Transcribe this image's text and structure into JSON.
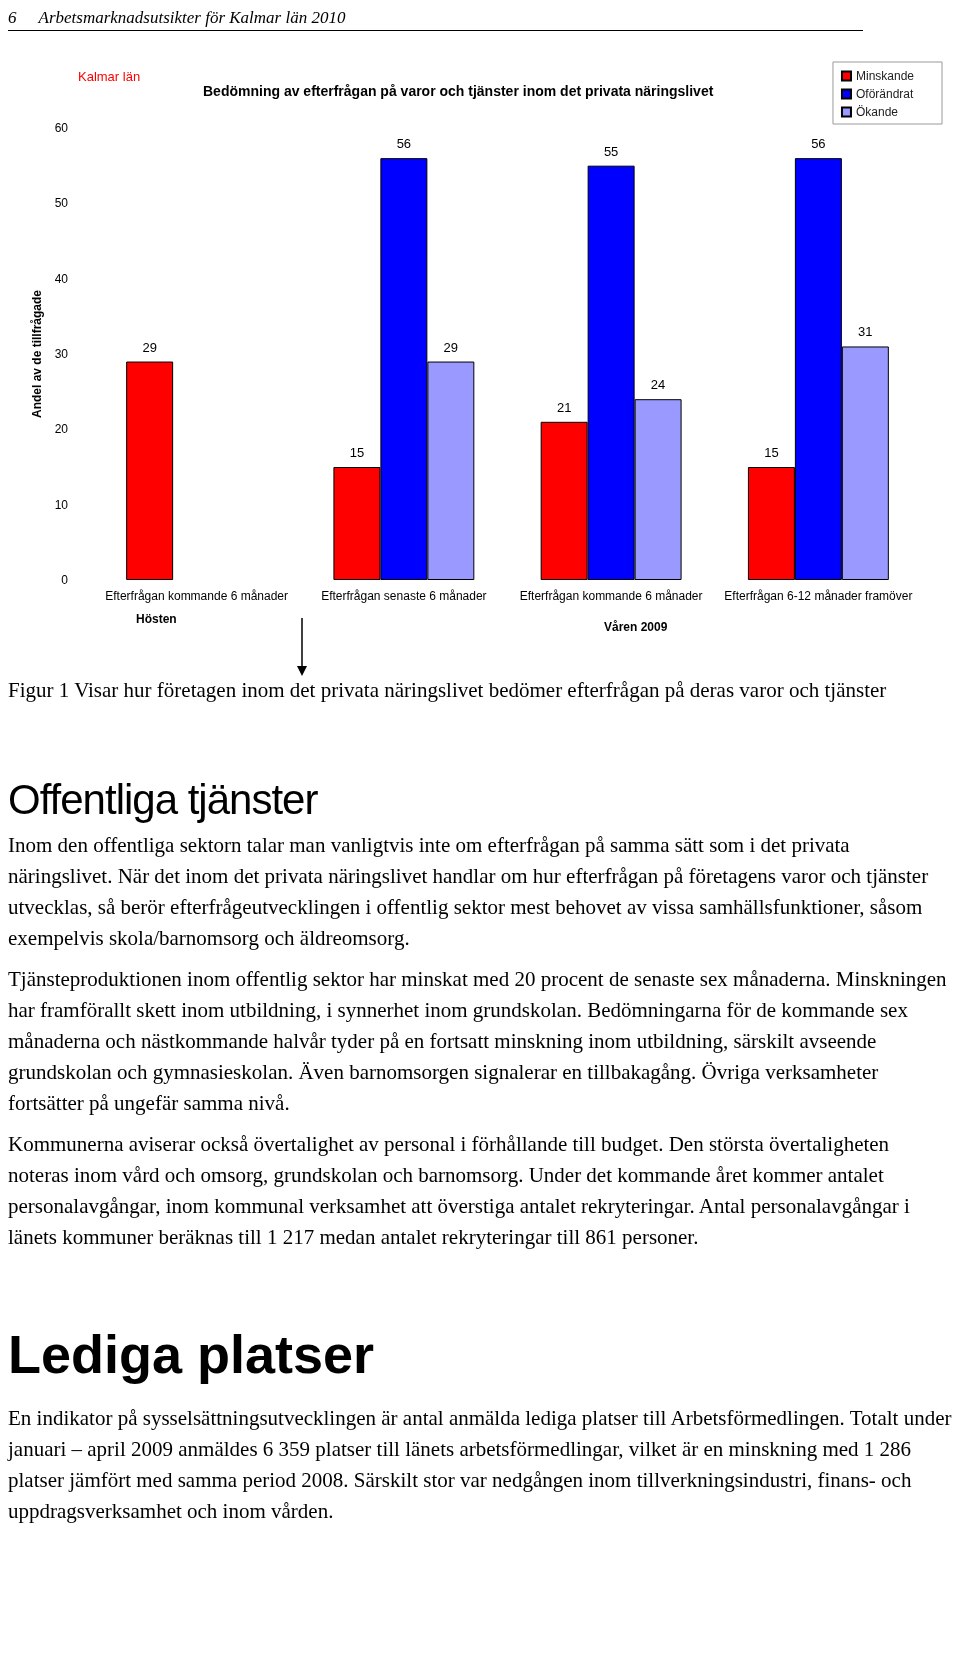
{
  "chart_data": {
    "type": "bar",
    "title": "Bedömning av efterfrågan på varor och tjänster inom det privata näringslivet",
    "ylabel": "Andel av de tillfrågade",
    "categories": [
      "Efterfrågan kommande 6 månader",
      "Efterfrågan senaste 6 månader",
      "Efterfrågan kommande 6 månader",
      "Efterfrågan 6-12 månader framöver"
    ],
    "series": [
      {
        "name": "Minskande",
        "color": "#ff0000",
        "values": [
          29,
          15,
          21,
          15
        ]
      },
      {
        "name": "Oförändrat",
        "color": "#0000ff",
        "values": [
          null,
          56,
          55,
          56
        ]
      },
      {
        "name": "Ökande",
        "color": "#9999ff",
        "values": [
          null,
          29,
          24,
          31
        ]
      }
    ],
    "ylim": [
      0,
      60
    ],
    "yticks": [
      0,
      10,
      20,
      30,
      40,
      50,
      60
    ],
    "grid": false,
    "legend": "top right",
    "data_labels": true,
    "annotations": [
      "6",
      "Arbetsmarknadsutsikter för Kalmar län 2010",
      "Kalmar län",
      "Hösten",
      "Våren 2009",
      "Figur 1 Visar hur företagen inom det privata näringslivet bedömer efterfrågan på deras varor och tjänster",
      "Offentliga tjänster",
      "Inom den offentliga sektorn talar man vanligtvis inte om efterfrågan på samma sätt som i det privata näringslivet. När det inom det privata näringslivet handlar om hur efterfrågan på företagens varor och tjänster utvecklas, så berör efterfrågeutvecklingen i offentlig sektor mest behovet av vissa samhällsfunktioner, såsom exempelvis skola/barnomsorg och äldreomsorg.",
      "Tjänsteproduktionen inom offentlig sektor har minskat med 20 procent de senaste sex månaderna. Minskningen har framförallt skett inom utbildning, i synnerhet inom grundskolan. Bedömningarna för de kommande sex månaderna och nästkommande halvår tyder på en fortsatt minskning inom utbildning, särskilt avseende grundskolan och gymnasieskolan. Även barnomsorgen signalerar en tillbakagång. Övriga verksamheter fortsätter på ungefär samma nivå.",
      "Kommunerna aviserar också övertalighet av personal i förhållande till budget. Den största övertaligheten noteras inom vård och omsorg, grundskolan och barnomsorg. Under det kommande året kommer antalet personalavgångar, inom kommunal verksamhet att överstiga antalet rekryteringar. Antal personalavgångar i länets kommuner beräknas till 1 217  medan antalet rekryteringar till 861 personer.",
      "Lediga platser",
      "En indikator på sysselsättningsutvecklingen är antal anmälda lediga platser till Arbetsförmedlingen. Totalt under januari – april 2009 anmäldes 6 359 platser till länets arbetsförmedlingar, vilket är en minskning med 1 286  platser jämfört med samma period 2008. Särskilt stor var nedgången inom tillverkningsindustri, finans- och uppdragsverksamhet och inom vården."
    ]
  }
}
